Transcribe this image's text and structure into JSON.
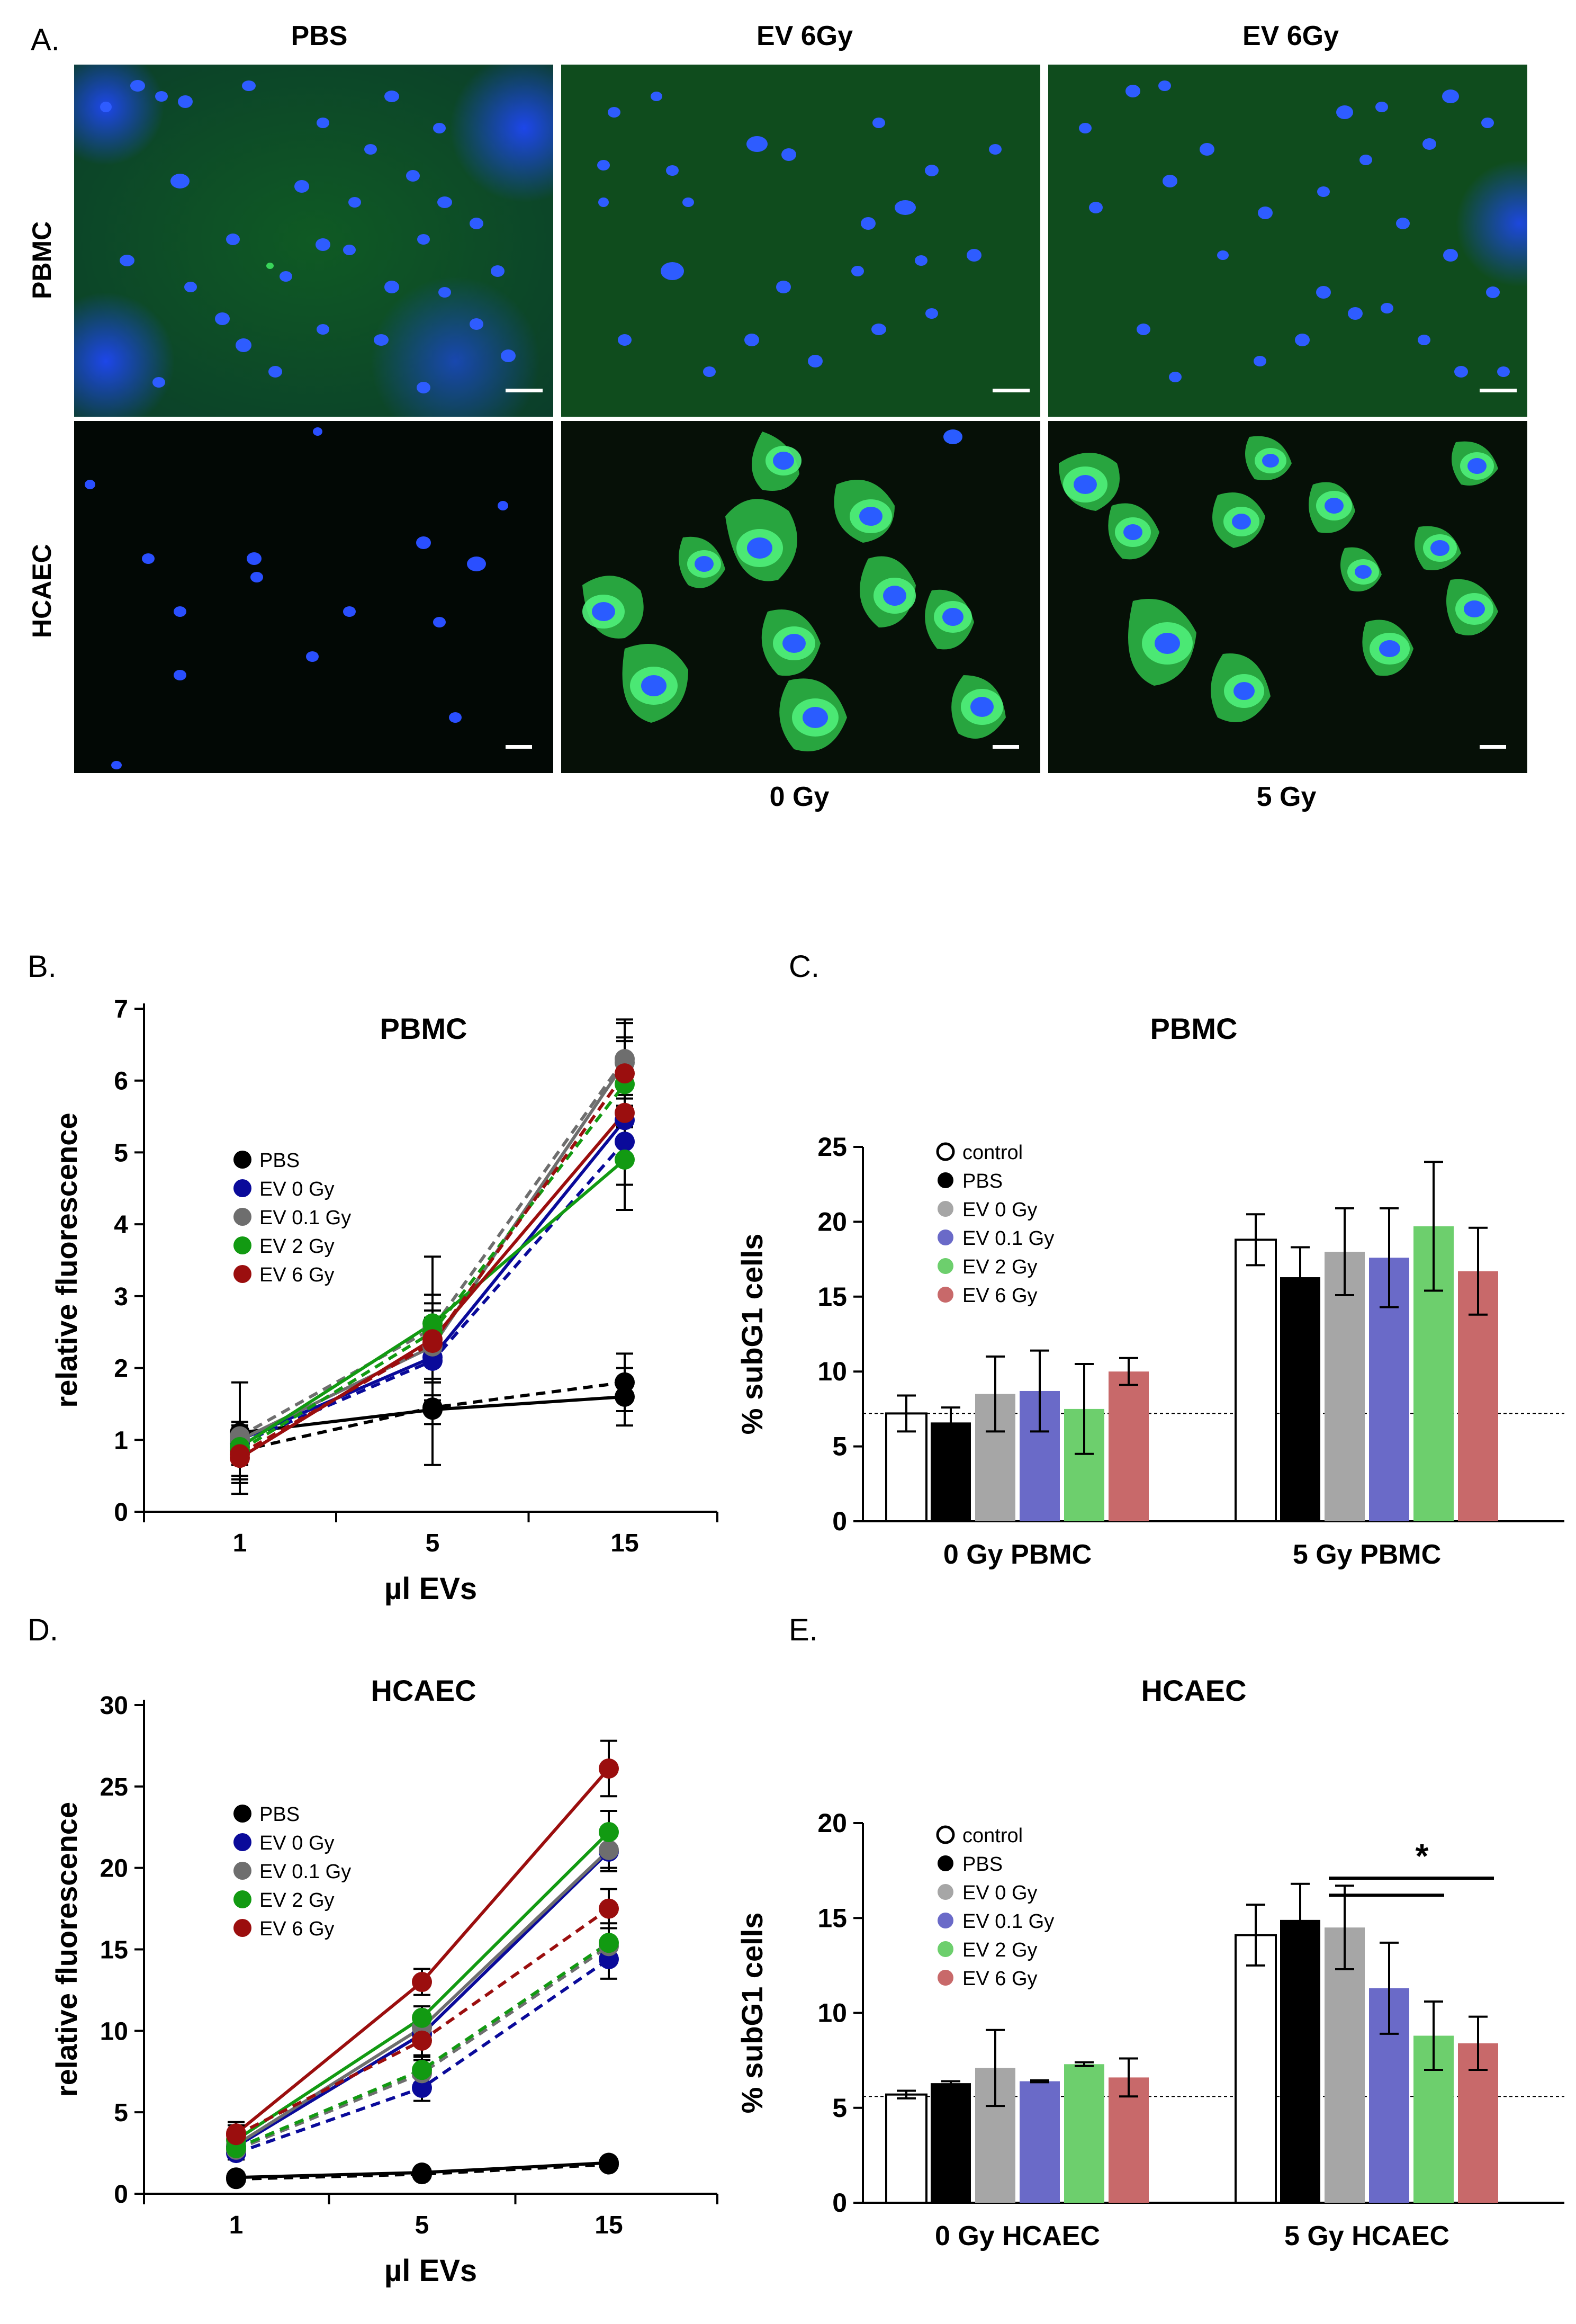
{
  "figure": {
    "panel_labels": [
      "A.",
      "B.",
      "C.",
      "D.",
      "E."
    ],
    "panel_a": {
      "column_headers": [
        "PBS",
        "EV 6Gy",
        "EV 6Gy"
      ],
      "row_headers": [
        "PBMC",
        "HCAEC"
      ],
      "dose_labels": [
        "0 Gy",
        "5 Gy"
      ],
      "image_colors": {
        "pbmc_background": "#0d4a1f",
        "hcaec_background": "#050b0c",
        "hcaec_pbs_background": "#020603",
        "nucleus": "#2a5cff",
        "cytoplasm": "#34d85a",
        "scale_bar": "#ffffff"
      }
    },
    "colors": {
      "PBS": "#000000",
      "EV 0 Gy": "#0a0a9a",
      "EV 0.1 Gy": "#6e6e6e",
      "EV 2 Gy": "#129a12",
      "EV 6 Gy": "#9b0e0e",
      "bar_control": "#ffffff",
      "bar_PBS": "#000000",
      "bar_EV0": "#a6a6a6",
      "bar_EV01": "#6a6ac8",
      "bar_EV2": "#6dcf6d",
      "bar_EV6": "#c8696a"
    }
  },
  "chart_data": [
    {
      "panel": "B",
      "type": "line",
      "title": "PBMC",
      "xlabel": "µl EVs",
      "ylabel": "relative fluorescence",
      "x": [
        "1",
        "5",
        "15"
      ],
      "ylim": [
        0,
        7
      ],
      "yticks": [
        "0",
        "1",
        "2",
        "3",
        "4",
        "5",
        "6",
        "7"
      ],
      "legend": [
        "PBS",
        "EV 0 Gy",
        "EV 0.1 Gy",
        "EV 2 Gy",
        "EV 6 Gy"
      ],
      "legend_position": "left-middle",
      "series": [
        {
          "name": "PBS",
          "style": "solid",
          "values": [
            1.1,
            1.42,
            1.6
          ],
          "err": [
            0.7,
            0.2,
            0.4
          ]
        },
        {
          "name": "PBS",
          "style": "dashed",
          "values": [
            0.85,
            1.45,
            1.8
          ],
          "err": [
            0.4,
            0.8,
            0.4
          ]
        },
        {
          "name": "EV 0 Gy",
          "style": "solid",
          "values": [
            1.0,
            2.15,
            5.45
          ],
          "err": [
            0.2,
            0.3,
            0.6
          ]
        },
        {
          "name": "EV 0 Gy",
          "style": "dashed",
          "values": [
            0.95,
            2.1,
            5.15
          ],
          "err": [
            0.2,
            0.3,
            0.6
          ]
        },
        {
          "name": "EV 0.1 Gy",
          "style": "solid",
          "values": [
            1.0,
            2.3,
            6.25
          ],
          "err": [
            0.2,
            0.5,
            0.6
          ]
        },
        {
          "name": "EV 0.1 Gy",
          "style": "dashed",
          "values": [
            1.05,
            2.55,
            6.3
          ],
          "err": [
            0.2,
            1.0,
            0.5
          ]
        },
        {
          "name": "EV 2 Gy",
          "style": "solid",
          "values": [
            0.9,
            2.62,
            4.9
          ],
          "err": [
            0.2,
            0.4,
            0.7
          ]
        },
        {
          "name": "EV 2 Gy",
          "style": "dashed",
          "values": [
            0.85,
            2.5,
            5.95
          ],
          "err": [
            0.2,
            0.4,
            0.6
          ]
        },
        {
          "name": "EV 6 Gy",
          "style": "solid",
          "values": [
            0.75,
            2.4,
            5.55
          ],
          "err": [
            0.5,
            0.3,
            0.7
          ]
        },
        {
          "name": "EV 6 Gy",
          "style": "dashed",
          "values": [
            0.8,
            2.35,
            6.1
          ],
          "err": [
            0.3,
            0.3,
            0.5
          ]
        }
      ]
    },
    {
      "panel": "C",
      "type": "bar",
      "title": "PBMC",
      "ylabel": "% subG1 cells",
      "categories": [
        "0 Gy PBMC",
        "5 Gy PBMC"
      ],
      "ylim": [
        0,
        25
      ],
      "yticks": [
        "0",
        "5",
        "10",
        "15",
        "20",
        "25"
      ],
      "reference_line": 7.2,
      "legend": [
        "control",
        "PBS",
        "EV 0 Gy",
        "EV 0.1 Gy",
        "EV 2 Gy",
        "EV 6 Gy"
      ],
      "legend_position": "top-left",
      "series": [
        {
          "name": "control",
          "values": [
            7.2,
            18.8
          ],
          "err": [
            1.2,
            1.7
          ]
        },
        {
          "name": "PBS",
          "values": [
            6.6,
            16.3
          ],
          "err": [
            1.0,
            2.0
          ]
        },
        {
          "name": "EV 0 Gy",
          "values": [
            8.5,
            18.0
          ],
          "err": [
            2.5,
            2.9
          ]
        },
        {
          "name": "EV 0.1 Gy",
          "values": [
            8.7,
            17.6
          ],
          "err": [
            2.7,
            3.3
          ]
        },
        {
          "name": "EV 2 Gy",
          "values": [
            7.5,
            19.7
          ],
          "err": [
            3.0,
            4.3
          ]
        },
        {
          "name": "EV 6 Gy",
          "values": [
            10.0,
            16.7
          ],
          "err": [
            0.9,
            2.9
          ]
        }
      ]
    },
    {
      "panel": "D",
      "type": "line",
      "title": "HCAEC",
      "xlabel": "µl EVs",
      "ylabel": "relative fluorescence",
      "x": [
        "1",
        "5",
        "15"
      ],
      "ylim": [
        0,
        30
      ],
      "yticks": [
        "0",
        "5",
        "10",
        "15",
        "20",
        "25",
        "30"
      ],
      "legend": [
        "PBS",
        "EV 0 Gy",
        "EV 0.1 Gy",
        "EV 2 Gy",
        "EV 6 Gy"
      ],
      "legend_position": "left-middle",
      "series": [
        {
          "name": "PBS",
          "style": "solid",
          "values": [
            1.0,
            1.3,
            1.9
          ],
          "err": [
            0.3,
            0.2,
            0.2
          ]
        },
        {
          "name": "PBS",
          "style": "dashed",
          "values": [
            0.9,
            1.2,
            1.8
          ],
          "err": [
            0.2,
            0.2,
            0.2
          ]
        },
        {
          "name": "EV 0 Gy",
          "style": "solid",
          "values": [
            2.9,
            9.8,
            21.0
          ],
          "err": [
            0.5,
            0.6,
            1.2
          ]
        },
        {
          "name": "EV 0 Gy",
          "style": "dashed",
          "values": [
            2.5,
            6.5,
            14.4
          ],
          "err": [
            0.4,
            0.8,
            1.2
          ]
        },
        {
          "name": "EV 0.1 Gy",
          "style": "solid",
          "values": [
            3.0,
            10.2,
            21.1
          ],
          "err": [
            0.5,
            0.6,
            1.1
          ]
        },
        {
          "name": "EV 0.1 Gy",
          "style": "dashed",
          "values": [
            2.7,
            7.4,
            15.2
          ],
          "err": [
            0.4,
            0.8,
            1.1
          ]
        },
        {
          "name": "EV 2 Gy",
          "style": "solid",
          "values": [
            3.3,
            10.8,
            22.2
          ],
          "err": [
            0.5,
            0.7,
            1.3
          ]
        },
        {
          "name": "EV 2 Gy",
          "style": "dashed",
          "values": [
            2.8,
            7.6,
            15.4
          ],
          "err": [
            0.5,
            0.8,
            1.2
          ]
        },
        {
          "name": "EV 6 Gy",
          "style": "solid",
          "values": [
            3.7,
            13.0,
            26.1
          ],
          "err": [
            0.7,
            0.8,
            1.7
          ]
        },
        {
          "name": "EV 6 Gy",
          "style": "dashed",
          "values": [
            3.6,
            9.4,
            17.5
          ],
          "err": [
            0.6,
            0.9,
            1.2
          ]
        }
      ]
    },
    {
      "panel": "E",
      "type": "bar",
      "title": "HCAEC",
      "ylabel": "% subG1 cells",
      "categories": [
        "0 Gy HCAEC",
        "5 Gy HCAEC"
      ],
      "ylim": [
        0,
        20
      ],
      "yticks": [
        "0",
        "5",
        "10",
        "15",
        "20"
      ],
      "reference_line": 5.6,
      "legend": [
        "control",
        "PBS",
        "EV 0 Gy",
        "EV 0.1 Gy",
        "EV 2 Gy",
        "EV 6 Gy"
      ],
      "legend_position": "top-left",
      "significance": {
        "label": "*",
        "pairs": [
          [
            "EV 0 Gy",
            "EV 2 Gy"
          ],
          [
            "EV 0 Gy",
            "EV 6 Gy"
          ]
        ]
      },
      "series": [
        {
          "name": "control",
          "values": [
            5.7,
            14.1
          ],
          "err": [
            0.2,
            1.6
          ]
        },
        {
          "name": "PBS",
          "values": [
            6.3,
            14.9
          ],
          "err": [
            0.1,
            1.9
          ]
        },
        {
          "name": "EV 0 Gy",
          "values": [
            7.1,
            14.5
          ],
          "err": [
            2.0,
            2.2
          ]
        },
        {
          "name": "EV 0.1 Gy",
          "values": [
            6.4,
            11.3
          ],
          "err": [
            0.05,
            2.4
          ]
        },
        {
          "name": "EV 2 Gy",
          "values": [
            7.3,
            8.8
          ],
          "err": [
            0.1,
            1.8
          ]
        },
        {
          "name": "EV 6 Gy",
          "values": [
            6.6,
            8.4
          ],
          "err": [
            1.0,
            1.4
          ]
        }
      ]
    }
  ]
}
